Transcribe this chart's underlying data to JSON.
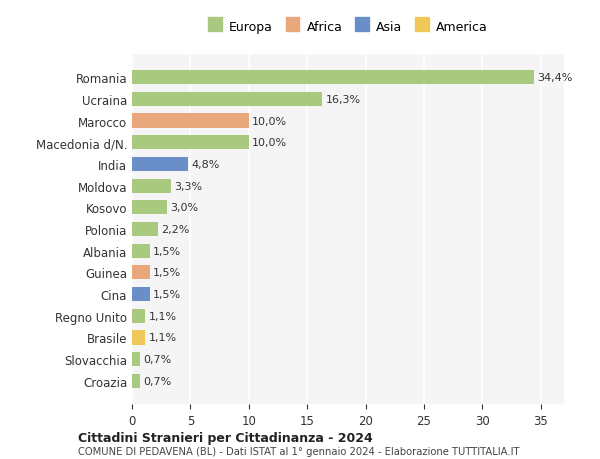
{
  "countries": [
    "Romania",
    "Ucraina",
    "Marocco",
    "Macedonia d/N.",
    "India",
    "Moldova",
    "Kosovo",
    "Polonia",
    "Albania",
    "Guinea",
    "Cina",
    "Regno Unito",
    "Brasile",
    "Slovacchia",
    "Croazia"
  ],
  "values": [
    34.4,
    16.3,
    10.0,
    10.0,
    4.8,
    3.3,
    3.0,
    2.2,
    1.5,
    1.5,
    1.5,
    1.1,
    1.1,
    0.7,
    0.7
  ],
  "labels": [
    "34,4%",
    "16,3%",
    "10,0%",
    "10,0%",
    "4,8%",
    "3,3%",
    "3,0%",
    "2,2%",
    "1,5%",
    "1,5%",
    "1,5%",
    "1,1%",
    "1,1%",
    "0,7%",
    "0,7%"
  ],
  "continents": [
    "Europa",
    "Europa",
    "Africa",
    "Europa",
    "Asia",
    "Europa",
    "Europa",
    "Europa",
    "Europa",
    "Africa",
    "Asia",
    "Europa",
    "America",
    "Europa",
    "Europa"
  ],
  "colors": {
    "Europa": "#a8c97f",
    "Africa": "#e8a87c",
    "Asia": "#6a8fc8",
    "America": "#f0c85a"
  },
  "legend_order": [
    "Europa",
    "Africa",
    "Asia",
    "America"
  ],
  "title_bold": "Cittadini Stranieri per Cittadinanza - 2024",
  "subtitle": "COMUNE DI PEDAVENA (BL) - Dati ISTAT al 1° gennaio 2024 - Elaborazione TUTTITALIA.IT",
  "xlim": [
    0,
    37
  ],
  "xticks": [
    0,
    5,
    10,
    15,
    20,
    25,
    30,
    35
  ],
  "background_color": "#ffffff",
  "plot_background": "#f5f5f5",
  "grid_color": "#ffffff"
}
